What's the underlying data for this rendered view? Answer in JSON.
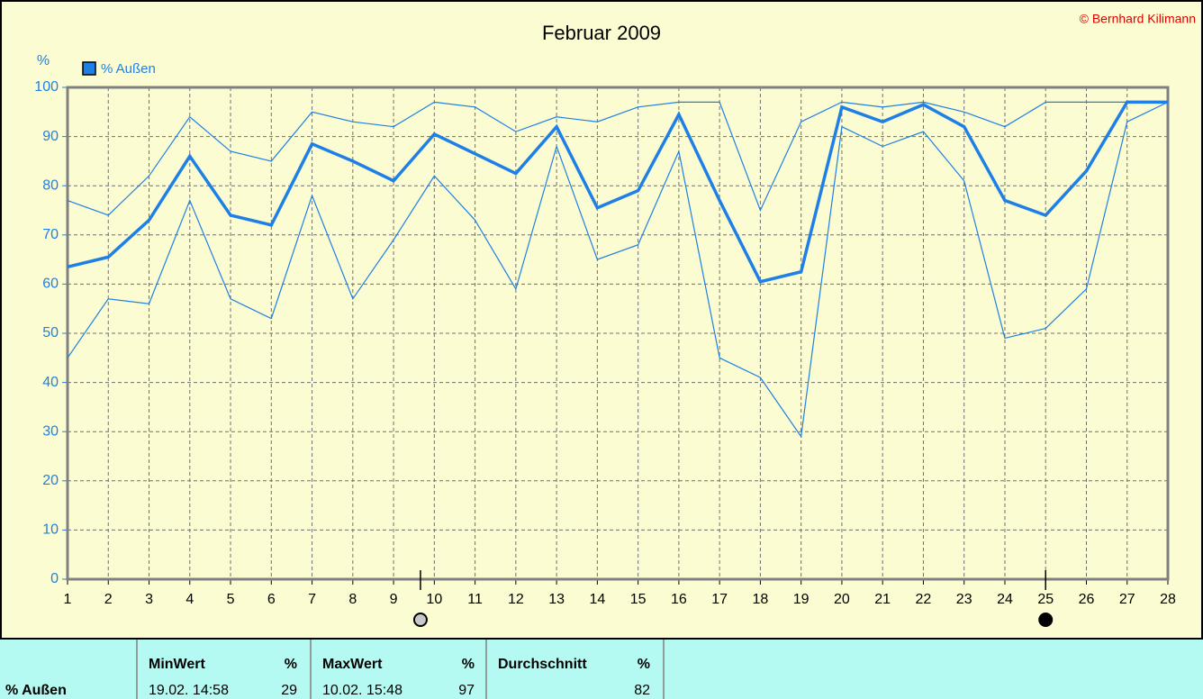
{
  "chart_data": {
    "type": "line",
    "title": "Februar 2009",
    "copyright": "© Bernhard Kilimann",
    "y_label": "%",
    "x": [
      1,
      2,
      3,
      4,
      5,
      6,
      7,
      8,
      9,
      10,
      11,
      12,
      13,
      14,
      15,
      16,
      17,
      18,
      19,
      20,
      21,
      22,
      23,
      24,
      25,
      26,
      27,
      28
    ],
    "xlim": [
      1,
      28
    ],
    "xticks": [
      1,
      2,
      3,
      4,
      5,
      6,
      7,
      8,
      9,
      10,
      11,
      12,
      13,
      14,
      15,
      16,
      17,
      18,
      19,
      20,
      21,
      22,
      23,
      24,
      25,
      26,
      27,
      28
    ],
    "ylim": [
      0,
      100
    ],
    "yticks": [
      0,
      10,
      20,
      30,
      40,
      50,
      60,
      70,
      80,
      90,
      100
    ],
    "grid": true,
    "series": [
      {
        "name": "% Außen",
        "color": "#1e80e6",
        "values": [
          63.5,
          65.5,
          73,
          86,
          74,
          72,
          88.5,
          85,
          81,
          90.5,
          86.5,
          82.5,
          92,
          75.5,
          79,
          94.5,
          77,
          60.5,
          62.5,
          96,
          93,
          96.5,
          92,
          77,
          74,
          83,
          97,
          97
        ],
        "high": [
          77,
          74,
          82,
          94,
          87,
          85,
          95,
          93,
          92,
          97,
          96,
          91,
          94,
          93,
          96,
          97,
          97,
          75,
          93,
          97,
          96,
          97,
          95,
          92,
          97,
          97,
          97,
          97
        ],
        "low": [
          45,
          57,
          56,
          77,
          57,
          53,
          78,
          57,
          69,
          82,
          73,
          59,
          88,
          65,
          68,
          87,
          45,
          41,
          29,
          92,
          88,
          91,
          81,
          49,
          51,
          59,
          93,
          97
        ]
      }
    ],
    "cursors": [
      {
        "x": 9.66,
        "color": "#c8c8c8"
      },
      {
        "x": 25,
        "color": "#000000"
      }
    ]
  },
  "table": {
    "header": [
      "MinWert",
      "%",
      "MaxWert",
      "%",
      "Durchschnitt",
      "%"
    ],
    "rows": [
      [
        "% Außen",
        "19.02.  14:58",
        "29",
        "10.02.  15:48",
        "97",
        "82"
      ]
    ]
  }
}
